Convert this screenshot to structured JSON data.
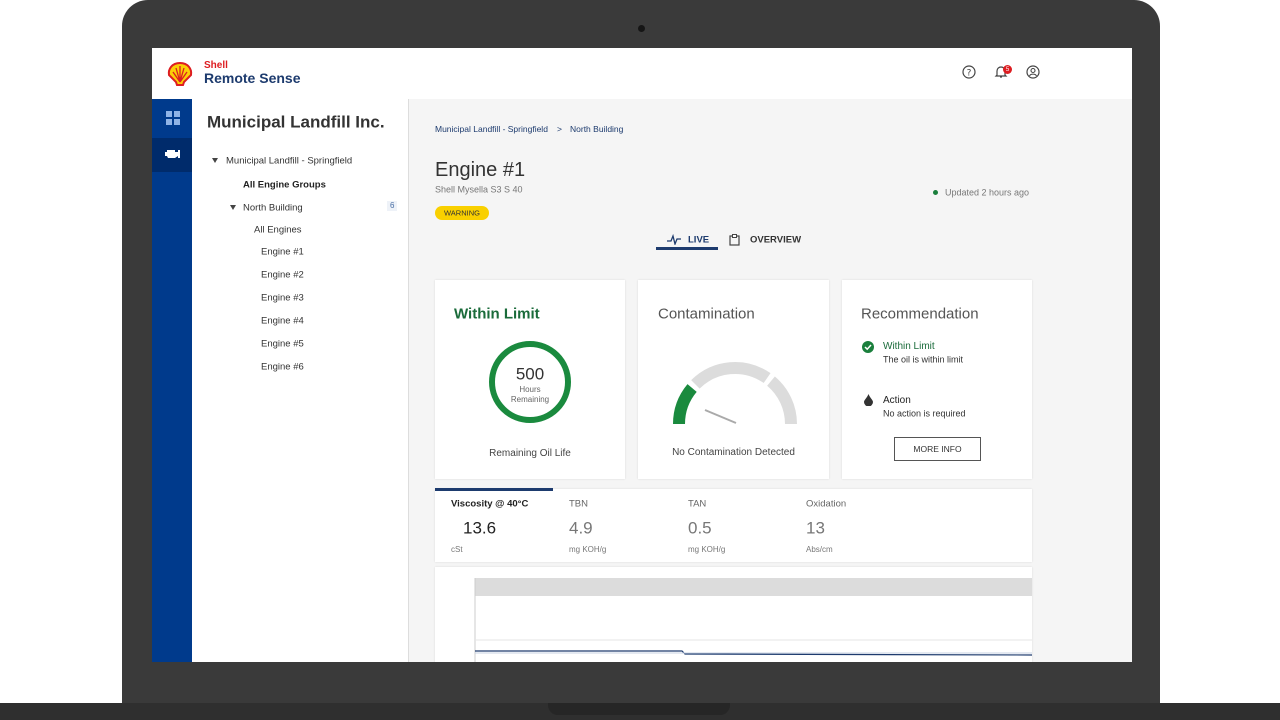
{
  "header": {
    "brand": "Shell",
    "product": "Remote Sense",
    "notifications": "5"
  },
  "sidebar": {
    "title": "Municipal Landfill Inc.",
    "tree": [
      "Municipal Landfill - Springfield",
      "All Engine Groups",
      "North Building",
      "All Engines",
      "Engine #1",
      "Engine #2",
      "Engine #3",
      "Engine #4",
      "Engine #5",
      "Engine #6"
    ],
    "north_building_count": "6"
  },
  "breadcrumb": [
    "Municipal Landfill - Springfield",
    ">",
    "North Building"
  ],
  "engine": {
    "title": "Engine #1",
    "product": "Shell Mysella S3 S  40",
    "status": "WARNING",
    "updated": "Updated 2 hours ago"
  },
  "tabs": [
    "LIVE",
    "OVERVIEW"
  ],
  "cards": {
    "oil_life": {
      "heading": "Within Limit",
      "value": "500",
      "unit_line1": "Hours",
      "unit_line2": "Remaining",
      "caption": "Remaining Oil Life"
    },
    "contamination": {
      "heading": "Contamination",
      "caption": "No Contamination Detected"
    },
    "recommendation": {
      "heading": "Recommendation",
      "items": [
        {
          "title": "Within Limit",
          "text": "The oil is within limit"
        },
        {
          "title": "Action",
          "text": "No action is required"
        }
      ],
      "button": "MORE INFO"
    }
  },
  "metrics": [
    {
      "name": "Viscosity @ 40°C",
      "value": "13.6",
      "unit": "cSt"
    },
    {
      "name": "TBN",
      "value": "4.9",
      "unit": "mg KOH/g"
    },
    {
      "name": "TAN",
      "value": "0.5",
      "unit": "mg KOH/g"
    },
    {
      "name": "Oxidation",
      "value": "13",
      "unit": "Abs/cm"
    }
  ]
}
